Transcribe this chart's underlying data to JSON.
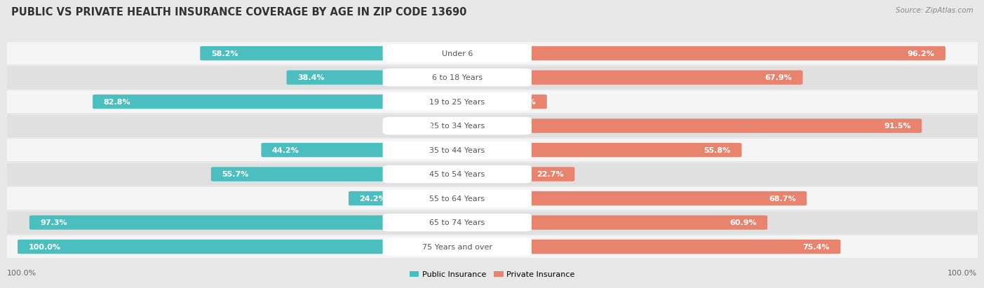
{
  "title": "PUBLIC VS PRIVATE HEALTH INSURANCE COVERAGE BY AGE IN ZIP CODE 13690",
  "source": "Source: ZipAtlas.com",
  "categories": [
    "Under 6",
    "6 to 18 Years",
    "19 to 25 Years",
    "25 to 34 Years",
    "35 to 44 Years",
    "45 to 54 Years",
    "55 to 64 Years",
    "65 to 74 Years",
    "75 Years and over"
  ],
  "public_values": [
    58.2,
    38.4,
    82.8,
    13.6,
    44.2,
    55.7,
    24.2,
    97.3,
    100.0
  ],
  "private_values": [
    96.2,
    67.9,
    17.2,
    91.5,
    55.8,
    22.7,
    68.7,
    60.9,
    75.4
  ],
  "public_color": "#4bbfbf",
  "private_color": "#e8836e",
  "public_label": "Public Insurance",
  "private_label": "Private Insurance",
  "background_color": "#e8e8e8",
  "row_bg_even": "#f5f5f5",
  "row_bg_odd": "#e0e0e0",
  "max_value": 100.0,
  "title_fontsize": 10.5,
  "label_fontsize": 8.0,
  "category_fontsize": 8.0,
  "source_fontsize": 7.5,
  "legend_fontsize": 8.0,
  "bottom_label": "100.0%"
}
